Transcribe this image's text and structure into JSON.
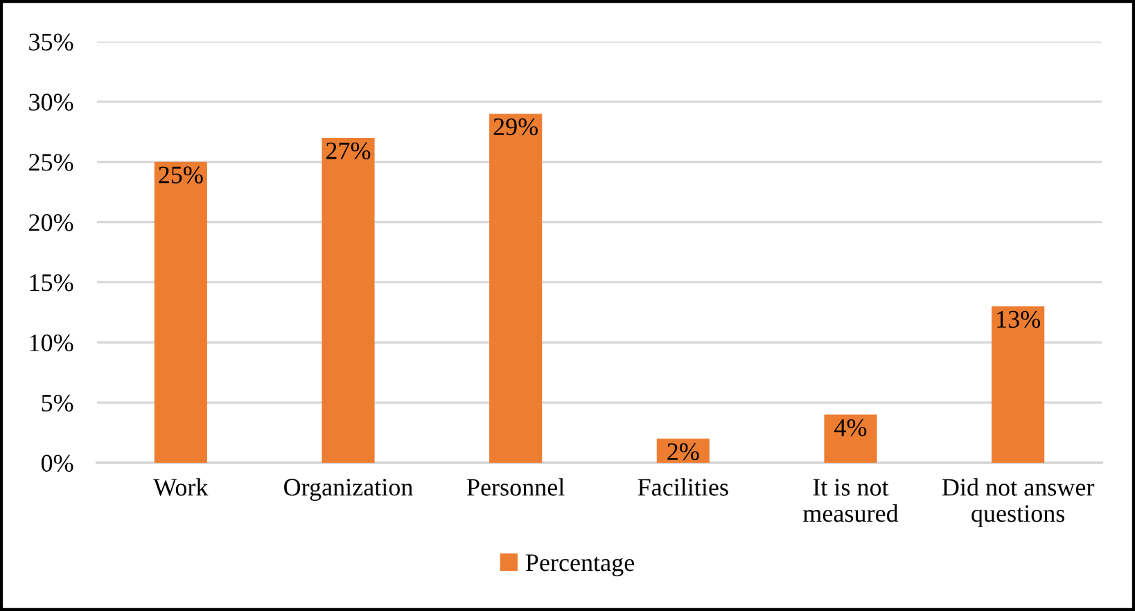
{
  "chart_data": {
    "type": "bar",
    "categories": [
      "Work",
      "Organization",
      "Personnel",
      "Facilities",
      "It is not\nmeasured",
      "Did not answer\nquestions"
    ],
    "series": [
      {
        "name": "Percentage",
        "color": "#ed7d31",
        "values": [
          25,
          27,
          29,
          2,
          4,
          13
        ],
        "value_labels": [
          "25%",
          "27%",
          "29%",
          "2%",
          "4%",
          "13%"
        ]
      }
    ],
    "ylim": [
      0,
      35
    ],
    "yticks": [
      {
        "value": 0,
        "label": "0%"
      },
      {
        "value": 5,
        "label": "5%"
      },
      {
        "value": 10,
        "label": "10%"
      },
      {
        "value": 15,
        "label": "15%"
      },
      {
        "value": 20,
        "label": "20%"
      },
      {
        "value": 25,
        "label": "25%"
      },
      {
        "value": 30,
        "label": "30%"
      },
      {
        "value": 35,
        "label": "35%"
      }
    ],
    "grid": "y",
    "legend": "bottom"
  }
}
